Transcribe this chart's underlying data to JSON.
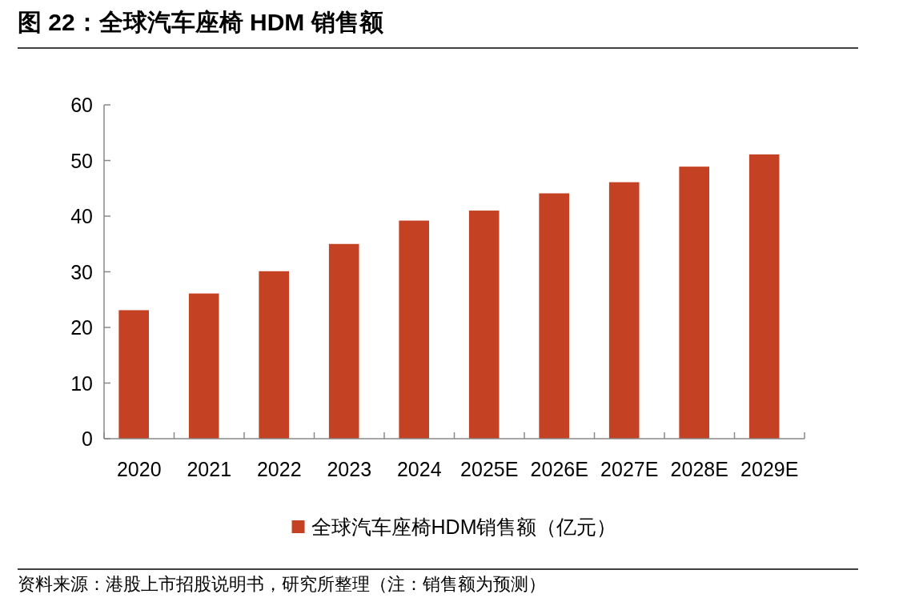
{
  "chart_data": {
    "type": "bar",
    "title": "图 22：全球汽车座椅 HDM 销售额",
    "categories": [
      "2020",
      "2021",
      "2022",
      "2023",
      "2024",
      "2025E",
      "2026E",
      "2027E",
      "2028E",
      "2029E"
    ],
    "series": [
      {
        "name": "全球汽车座椅HDM销售额（亿元）",
        "color": "#c44223",
        "values": [
          23.1,
          26.1,
          30.1,
          35.0,
          39.2,
          41.0,
          44.1,
          46.1,
          48.9,
          51.1
        ]
      }
    ],
    "ylim": [
      0,
      60
    ],
    "yticks": [
      0,
      10,
      20,
      30,
      40,
      50,
      60
    ],
    "grid": false,
    "legend": "bottom",
    "annotations": [
      "资料来源：港股上市招股说明书，研究所整理（注：销售额为预测）"
    ]
  }
}
